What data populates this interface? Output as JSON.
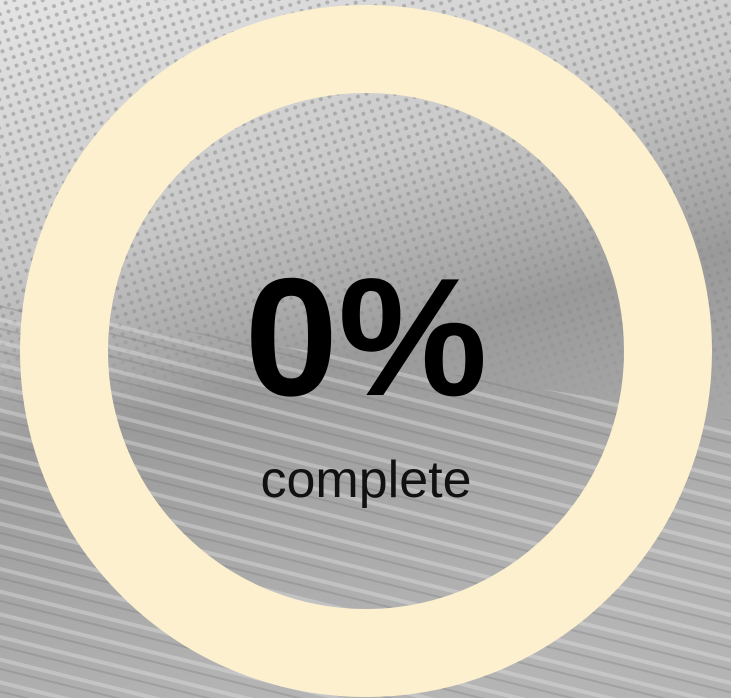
{
  "progress": {
    "value": 0,
    "value_label": "0%",
    "caption": "complete"
  }
}
